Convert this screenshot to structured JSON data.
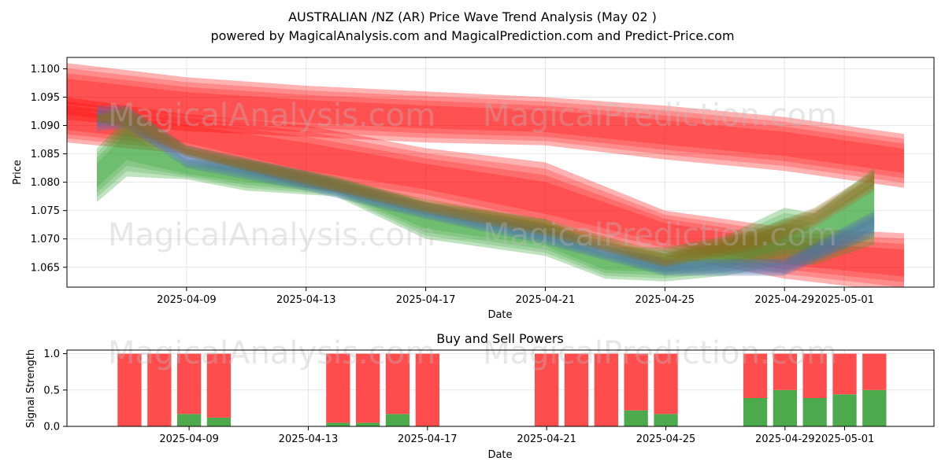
{
  "header": {
    "title_line1": "AUSTRALIAN /NZ (AR) Price Wave Trend Analysis (May 02 )",
    "title_line2": "powered by MagicalAnalysis.com and MagicalPrediction.com and Predict-Price.com"
  },
  "watermarks": {
    "analysis": "MagicalAnalysis.com",
    "prediction": "MagicalPrediction.com"
  },
  "colors": {
    "red_band": "#ff0000",
    "green_band": "#2ca02c",
    "blue_band": "#4c72b0",
    "brown_band": "#8c6d1f",
    "sell": "#ff4d4d",
    "buy": "#4caa4c",
    "grid": "#e6e6e6"
  },
  "chart_data": [
    {
      "type": "area",
      "title": "",
      "xlabel": "Date",
      "ylabel": "Price",
      "ylim": [
        1.0615,
        1.102
      ],
      "x_range": [
        "2025-04-05",
        "2025-05-04"
      ],
      "x_ticks": [
        "2025-04-09",
        "2025-04-13",
        "2025-04-17",
        "2025-04-21",
        "2025-04-25",
        "2025-04-29",
        "2025-05-01"
      ],
      "y_ticks": [
        1.065,
        1.07,
        1.075,
        1.08,
        1.085,
        1.09,
        1.095,
        1.1
      ],
      "grid": true,
      "series": [
        {
          "color": "red",
          "x": [
            "2025-04-05",
            "2025-04-09",
            "2025-04-13",
            "2025-04-17",
            "2025-04-21",
            "2025-04-25",
            "2025-04-29",
            "2025-05-03"
          ],
          "low": [
            1.091,
            1.089,
            1.088,
            1.087,
            1.0865,
            1.084,
            1.082,
            1.079
          ],
          "high": [
            1.101,
            1.0985,
            1.097,
            1.096,
            1.095,
            1.0935,
            1.0915,
            1.0885
          ]
        },
        {
          "color": "red",
          "x": [
            "2025-04-05",
            "2025-04-09",
            "2025-04-13",
            "2025-04-17",
            "2025-04-21",
            "2025-04-25",
            "2025-04-29",
            "2025-05-03"
          ],
          "low": [
            1.087,
            1.085,
            1.079,
            1.076,
            1.071,
            1.067,
            1.063,
            1.0605
          ],
          "high": [
            1.095,
            1.092,
            1.09,
            1.086,
            1.0835,
            1.075,
            1.072,
            1.071
          ]
        },
        {
          "color": "green",
          "x": [
            "2025-04-06",
            "2025-04-07",
            "2025-04-09",
            "2025-04-11",
            "2025-04-14",
            "2025-04-17",
            "2025-04-21",
            "2025-04-23",
            "2025-04-25",
            "2025-04-27",
            "2025-04-29",
            "2025-04-30",
            "2025-05-02"
          ],
          "low": [
            1.0765,
            1.081,
            1.0805,
            1.0785,
            1.0775,
            1.07,
            1.067,
            1.063,
            1.0625,
            1.0635,
            1.0655,
            1.0655,
            1.069
          ],
          "high": [
            1.086,
            1.0915,
            1.084,
            1.084,
            1.081,
            1.0765,
            1.0735,
            1.0685,
            1.0685,
            1.0705,
            1.0755,
            1.0745,
            1.0825
          ]
        },
        {
          "color": "blue",
          "x": [
            "2025-04-06",
            "2025-04-07",
            "2025-04-09",
            "2025-04-13",
            "2025-04-17",
            "2025-04-21",
            "2025-04-25",
            "2025-04-29",
            "2025-05-02"
          ],
          "low": [
            1.089,
            1.0895,
            1.0825,
            1.0785,
            1.0735,
            1.069,
            1.0635,
            1.0635,
            1.0705
          ],
          "high": [
            1.0935,
            1.0935,
            1.0865,
            1.082,
            1.0765,
            1.0725,
            1.0665,
            1.0665,
            1.075
          ]
        },
        {
          "color": "brown",
          "x": [
            "2025-04-06",
            "2025-04-07",
            "2025-04-09",
            "2025-04-13",
            "2025-04-17",
            "2025-04-21",
            "2025-04-25",
            "2025-04-28",
            "2025-04-30",
            "2025-05-02"
          ],
          "low": [
            1.0905,
            1.0895,
            1.0845,
            1.0795,
            1.0745,
            1.0705,
            1.065,
            1.068,
            1.072,
            1.0785
          ],
          "high": [
            1.092,
            1.0935,
            1.0865,
            1.082,
            1.077,
            1.0735,
            1.0675,
            1.0715,
            1.0755,
            1.082
          ]
        }
      ]
    },
    {
      "type": "bar",
      "title": "Buy and Sell Powers",
      "xlabel": "Date",
      "ylabel": "Signal Strength",
      "ylim": [
        0,
        1.05
      ],
      "y_ticks": [
        0.0,
        0.5,
        1.0
      ],
      "x_ticks": [
        "2025-04-09",
        "2025-04-13",
        "2025-04-17",
        "2025-04-21",
        "2025-04-25",
        "2025-04-29",
        "2025-05-01"
      ],
      "grid": true,
      "categories": [
        "2025-04-07",
        "2025-04-08",
        "2025-04-09",
        "2025-04-10",
        "2025-04-14",
        "2025-04-15",
        "2025-04-16",
        "2025-04-17",
        "2025-04-21",
        "2025-04-22",
        "2025-04-23",
        "2025-04-24",
        "2025-04-25",
        "2025-04-28",
        "2025-04-29",
        "2025-04-30",
        "2025-05-01",
        "2025-05-02"
      ],
      "series": [
        {
          "color": "green",
          "values": [
            0.0,
            0.0,
            0.17,
            0.12,
            0.05,
            0.05,
            0.17,
            0.0,
            0.0,
            0.0,
            0.0,
            0.22,
            0.17,
            0.39,
            0.5,
            0.39,
            0.44,
            0.5
          ]
        },
        {
          "color": "red",
          "values": [
            1.0,
            1.0,
            0.83,
            0.88,
            0.95,
            0.95,
            0.83,
            1.0,
            1.0,
            1.0,
            1.0,
            0.78,
            0.83,
            0.61,
            0.5,
            0.61,
            0.56,
            0.5
          ]
        }
      ]
    }
  ]
}
